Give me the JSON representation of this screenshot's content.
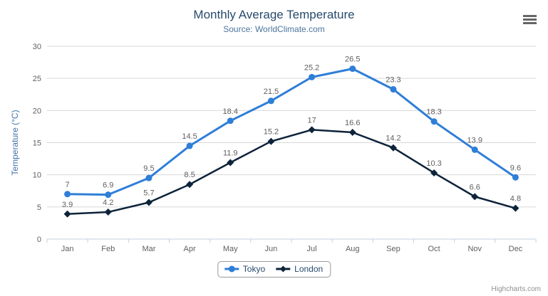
{
  "chart_data": {
    "type": "line",
    "title": "Monthly Average Temperature",
    "subtitle": "Source: WorldClimate.com",
    "categories": [
      "Jan",
      "Feb",
      "Mar",
      "Apr",
      "May",
      "Jun",
      "Jul",
      "Aug",
      "Sep",
      "Oct",
      "Nov",
      "Dec"
    ],
    "series": [
      {
        "name": "Tokyo",
        "color": "#2f7ed8",
        "marker": "circle",
        "line_width": 3,
        "values": [
          7,
          6.9,
          9.5,
          14.5,
          18.4,
          21.5,
          25.2,
          26.5,
          23.3,
          18.3,
          13.9,
          9.6
        ]
      },
      {
        "name": "London",
        "color": "#0d233a",
        "marker": "diamond",
        "line_width": 2.5,
        "values": [
          3.9,
          4.2,
          5.7,
          8.5,
          11.9,
          15.2,
          17,
          16.6,
          14.2,
          10.3,
          6.6,
          4.8
        ]
      }
    ],
    "xlabel": "",
    "ylabel": "Temperature (°C)",
    "ylim": [
      0,
      30
    ],
    "yticks": [
      0,
      5,
      10,
      15,
      20,
      25,
      30
    ],
    "grid": true,
    "data_labels": true,
    "legend_position": "bottom"
  },
  "toolbar": {
    "menu_icon": "hamburger-icon"
  },
  "credits": {
    "text": "Highcharts.com"
  },
  "colors": {
    "title": "#274b6d",
    "subtitle": "#4d759e",
    "axis_labels": "#606060",
    "y_axis_title": "#4572a7",
    "gridline": "#d8d8d8",
    "axis_line": "#c0d0e0",
    "data_label": "#606060",
    "legend_text": "#274b6d",
    "credits": "#909090",
    "menu_icon": "#666666"
  }
}
